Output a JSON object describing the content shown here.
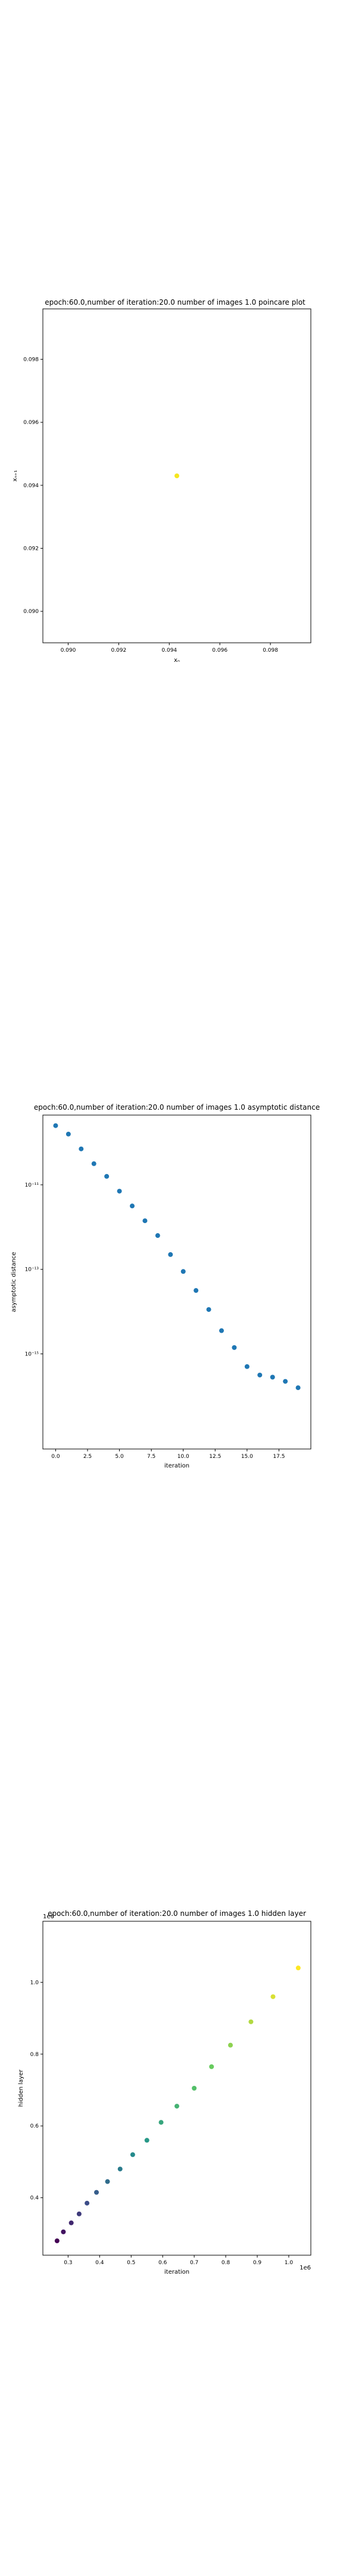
{
  "chart_data": [
    {
      "type": "scatter",
      "title": "epoch:60.0,number of iteration:20.0 number of images 1.0 poincare plot",
      "xlabel": "xₙ",
      "ylabel": "xₙ₊₁",
      "xlim": [
        0.089,
        0.0996
      ],
      "ylim": [
        0.089,
        0.0996
      ],
      "xticks": [
        0.09,
        0.092,
        0.094,
        0.096,
        0.098
      ],
      "yticks": [
        0.09,
        0.092,
        0.094,
        0.096,
        0.098
      ],
      "x": [
        0.0943
      ],
      "y": [
        0.0943
      ],
      "point_color": "#f5e61f",
      "grid": false
    },
    {
      "type": "scatter",
      "title": "epoch:60.0,number of iteration:20.0  number of images 1.0 asymptotic distance",
      "xlabel": "iteration",
      "ylabel": "asymptotic distance",
      "yscale": "log",
      "xlim": [
        -1,
        20
      ],
      "ylim_exp": [
        -17.25,
        -9.35
      ],
      "xticks": [
        0.0,
        2.5,
        5.0,
        7.5,
        10.0,
        12.5,
        15.0,
        17.5
      ],
      "yticks": [
        "10⁻¹¹",
        "10⁻¹³",
        "10⁻¹⁵"
      ],
      "yticks_exp": [
        -11,
        -13,
        -15
      ],
      "x": [
        0,
        1,
        2,
        3,
        4,
        5,
        6,
        7,
        8,
        9,
        10,
        11,
        12,
        13,
        14,
        15,
        16,
        17,
        18,
        19
      ],
      "y_exp": [
        -9.6,
        -9.8,
        -10.15,
        -10.5,
        -10.8,
        -11.15,
        -11.5,
        -11.85,
        -12.2,
        -12.65,
        -13.05,
        -13.5,
        -13.95,
        -14.45,
        -14.85,
        -15.3,
        -15.5,
        -15.55,
        -15.65,
        -15.8
      ],
      "point_color": "#1f77b4",
      "grid": false
    },
    {
      "type": "scatter",
      "title": "epoch:60.0,number of iteration:20.0  number of images 1.0 hidden layer",
      "xlabel": "iteration",
      "ylabel": "hidden layer",
      "x_offset_label": "1e6",
      "y_offset_label": "1e6",
      "xlim": [
        0.22,
        1.07
      ],
      "ylim": [
        0.24,
        1.17
      ],
      "xticks": [
        0.3,
        0.4,
        0.5,
        0.6,
        0.7,
        0.8,
        0.9,
        1.0
      ],
      "yticks": [
        0.4,
        0.6,
        0.8,
        1.0
      ],
      "x": [
        0.265,
        0.285,
        0.31,
        0.335,
        0.36,
        0.39,
        0.425,
        0.465,
        0.505,
        0.55,
        0.595,
        0.645,
        0.7,
        0.755,
        0.815,
        0.88,
        0.95,
        1.03
      ],
      "y": [
        0.28,
        0.305,
        0.33,
        0.355,
        0.385,
        0.415,
        0.445,
        0.48,
        0.52,
        0.56,
        0.61,
        0.655,
        0.705,
        0.765,
        0.825,
        0.89,
        0.96,
        1.04
      ],
      "colormap": "viridis",
      "grid": false
    }
  ]
}
